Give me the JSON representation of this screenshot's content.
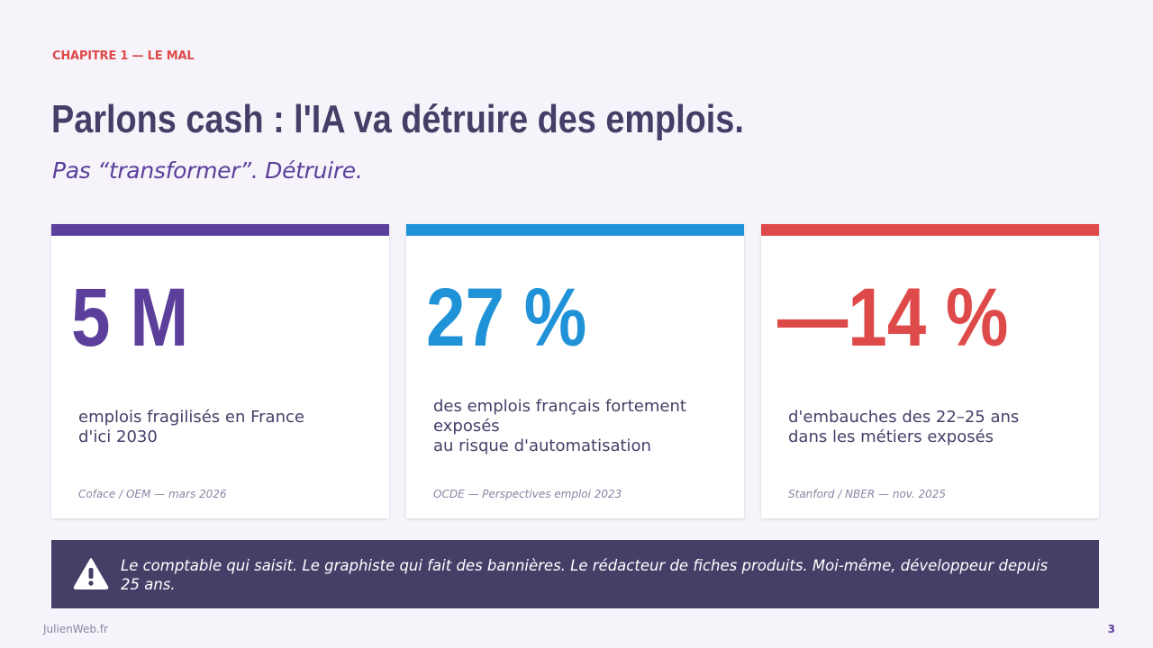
{
  "chapter": "CHAPITRE 1 — LE MAL",
  "title": "Parlons cash : l'IA va détruire des emplois.",
  "subtitle": "Pas “transformer”. Détruire.",
  "colors": {
    "purple": "#5b3f9a",
    "blue": "#2092d8",
    "red": "#de4a4a",
    "banner": "#453f68"
  },
  "cards": [
    {
      "value": "5 M",
      "description": "emplois fragilisés en France\nd'ici 2030",
      "source": "Coface / OEM — mars 2026"
    },
    {
      "value": "27 %",
      "description": "des emplois français fortement exposés\nau risque d'automatisation",
      "source": "OCDE — Perspectives emploi 2023"
    },
    {
      "value": "—14 %",
      "description": "d'embauches des 22–25 ans\ndans les métiers exposés",
      "source": "Stanford / NBER — nov. 2025"
    }
  ],
  "banner": {
    "icon": "warning-icon",
    "text": "Le comptable qui saisit. Le graphiste qui fait des bannières. Le rédacteur de fiches produits. Moi-même, développeur depuis 25 ans."
  },
  "footer": {
    "site": "JulienWeb.fr",
    "page": "3"
  }
}
